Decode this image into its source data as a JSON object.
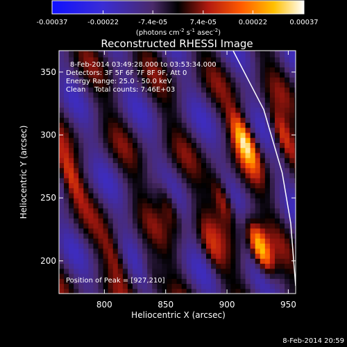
{
  "colorbar": {
    "ticks": [
      "-0.00037",
      "-0.00022",
      "-7.4e-05",
      "7.4e-05",
      "0.00022",
      "0.00037"
    ],
    "tick_values": [
      -0.00037,
      -0.00022,
      -7.4e-05,
      7.4e-05,
      0.00022,
      0.00037
    ],
    "range": [
      -0.00037,
      0.00037
    ],
    "units_main": "(photons cm",
    "units_exp1": "-2",
    "units_mid": " s",
    "units_exp2": "-1",
    "units_tail": " asec",
    "units_exp3": "-2",
    "units_close": ")"
  },
  "plot": {
    "title": "Reconstructed RHESSI Image",
    "info_lines": [
      "8-Feb-2014 03:49:28.000 to 03:53:34.000",
      "Detectors: 3F 5F 6F 7F 8F 9F, Att 0",
      "Energy Range: 25.0 - 50.0 keV",
      "Clean    Total counts: 7.46E+03"
    ],
    "peak_label": "Position of Peak = [927,210]",
    "timestamp": "8-Feb-2014 20:59"
  },
  "chart_data": {
    "type": "heatmap",
    "title": "Reconstructed RHESSI Image",
    "xlabel": "Heliocentric X (arcsec)",
    "ylabel": "Heliocentric Y (arcsec)",
    "xlim": [
      763,
      956
    ],
    "ylim": [
      174,
      367
    ],
    "xticks": [
      800,
      850,
      900,
      950
    ],
    "yticks": [
      200,
      250,
      300,
      350
    ],
    "value_units": "photons cm^-2 s^-1 asec^-2",
    "value_range": [
      -0.00037,
      0.00037
    ],
    "peak_position": [
      927,
      210
    ],
    "limb_points": [
      [
        905,
        367
      ],
      [
        930,
        320
      ],
      [
        945,
        270
      ],
      [
        952,
        230
      ],
      [
        956,
        180
      ]
    ],
    "sources": [
      {
        "x": 914,
        "y": 295,
        "strength": 0.00034
      },
      {
        "x": 927,
        "y": 210,
        "strength": 0.00037
      },
      {
        "x": 945,
        "y": 300,
        "strength": 0.00022
      },
      {
        "x": 897,
        "y": 248,
        "strength": 0.00021
      },
      {
        "x": 852,
        "y": 245,
        "strength": 0.00016
      },
      {
        "x": 772,
        "y": 268,
        "strength": 0.00015
      },
      {
        "x": 808,
        "y": 203,
        "strength": 0.0001
      },
      {
        "x": 838,
        "y": 192,
        "strength": 0.0001
      },
      {
        "x": 888,
        "y": 208,
        "strength": 0.00011
      }
    ]
  }
}
